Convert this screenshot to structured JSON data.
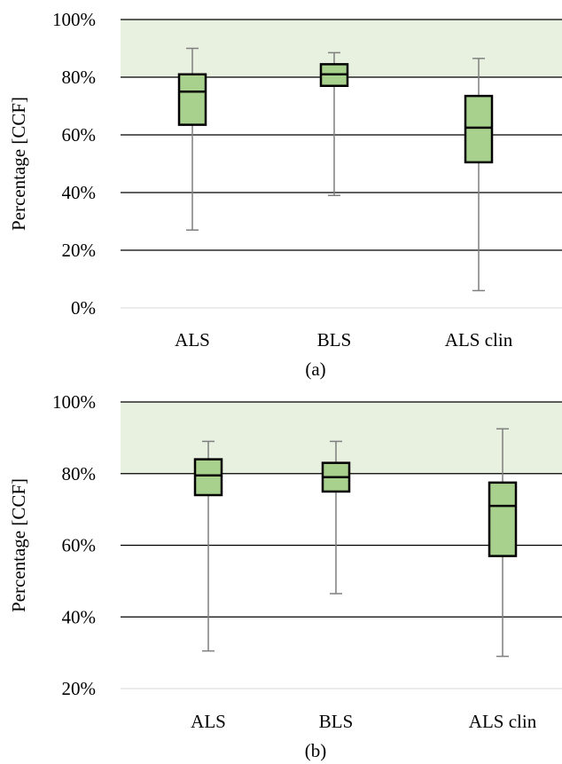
{
  "chart_data": [
    {
      "type": "boxplot",
      "caption": "(a)",
      "ylabel": "Percentage [CCF]",
      "ylim": [
        0,
        100
      ],
      "yticks": [
        0,
        20,
        40,
        60,
        80,
        100
      ],
      "ytick_labels": [
        "0%",
        "20%",
        "40%",
        "60%",
        "80%",
        "100%"
      ],
      "shaded_band": [
        80,
        100
      ],
      "categories": [
        "ALS",
        "BLS",
        "ALS clin"
      ],
      "boxes": [
        {
          "category": "ALS",
          "min": 27,
          "q1": 63.5,
          "median": 75,
          "q3": 81,
          "max": 90
        },
        {
          "category": "BLS",
          "min": 39,
          "q1": 77,
          "median": 81,
          "q3": 84.5,
          "max": 88.5
        },
        {
          "category": "ALS clin",
          "min": 6,
          "q1": 50.5,
          "median": 62.5,
          "q3": 73.5,
          "max": 86.5
        }
      ],
      "colors": {
        "box_fill": "#a9d18e",
        "band": "#e8f1e0",
        "whisker": "#7f7f7f"
      }
    },
    {
      "type": "boxplot",
      "caption": "(b)",
      "ylabel": "Percentage [CCF]",
      "ylim": [
        20,
        100
      ],
      "yticks": [
        20,
        40,
        60,
        80,
        100
      ],
      "ytick_labels": [
        "20%",
        "40%",
        "60%",
        "80%",
        "100%"
      ],
      "shaded_band": [
        80,
        100
      ],
      "categories": [
        "ALS",
        "BLS",
        "ALS clin"
      ],
      "boxes": [
        {
          "category": "ALS",
          "min": 30.5,
          "q1": 74,
          "median": 79.5,
          "q3": 84,
          "max": 89
        },
        {
          "category": "BLS",
          "min": 46.5,
          "q1": 75,
          "median": 79,
          "q3": 83,
          "max": 89
        },
        {
          "category": "ALS clin",
          "min": 29,
          "q1": 57,
          "median": 71,
          "q3": 77.5,
          "max": 92.5
        }
      ],
      "colors": {
        "box_fill": "#a9d18e",
        "band": "#e8f1e0",
        "whisker": "#7f7f7f"
      }
    }
  ]
}
